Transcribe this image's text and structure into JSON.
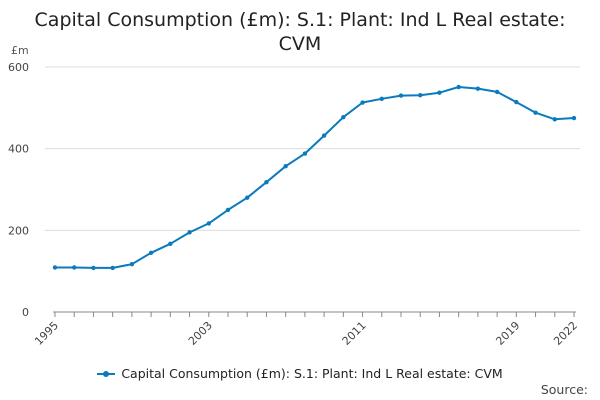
{
  "title_line1": "Capital Consumption (£m): S.1: Plant: Ind L Real estate:",
  "title_line2": "CVM",
  "source_label": "Source:",
  "colors": {
    "series": "#0a7bbd",
    "grid": "#dcdcdc",
    "axis": "#888888"
  },
  "chart_data": {
    "type": "line",
    "title": "Capital Consumption (£m): S.1: Plant: Ind L Real estate: CVM",
    "ylabel": "£m",
    "xlabel": "",
    "ylim": [
      0,
      600
    ],
    "xlim": [
      1995,
      2022
    ],
    "yticks": [
      0,
      200,
      400,
      600
    ],
    "xticks": [
      "1995",
      "2003",
      "2011",
      "2019",
      "2022"
    ],
    "grid": true,
    "legend": "bottom",
    "x": [
      1995,
      1996,
      1997,
      1998,
      1999,
      2000,
      2001,
      2002,
      2003,
      2004,
      2005,
      2006,
      2007,
      2008,
      2009,
      2010,
      2011,
      2012,
      2013,
      2014,
      2015,
      2016,
      2017,
      2018,
      2019,
      2020,
      2021,
      2022
    ],
    "series": [
      {
        "name": "Capital Consumption (£m): S.1: Plant: Ind L Real estate: CVM",
        "values": [
          109,
          109,
          108,
          108,
          117,
          145,
          167,
          195,
          217,
          250,
          280,
          318,
          357,
          388,
          432,
          477,
          513,
          522,
          530,
          531,
          537,
          551,
          547,
          539,
          514,
          488,
          472,
          475
        ]
      }
    ]
  }
}
